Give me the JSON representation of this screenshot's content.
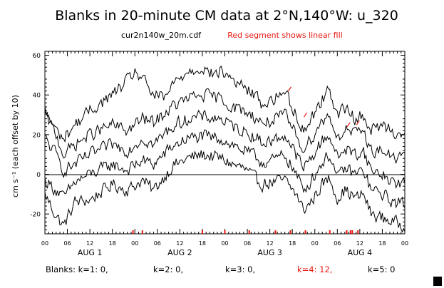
{
  "chart_data": {
    "type": "line",
    "title": "Blanks in 20-minute CM data at 2°N,140°W: u_320",
    "subtitle_file": "cur2n140w_20m.cdf",
    "subtitle_note": "Red segment shows linear fill",
    "ylabel": "cm s⁻¹ (each offset by 10)",
    "ylim": [
      -30,
      62
    ],
    "xlim": [
      0,
      96
    ],
    "y_ticks": [
      -20,
      0,
      20,
      40,
      60
    ],
    "x_hour_ticks": [
      "00",
      "06",
      "12",
      "18",
      "00",
      "06",
      "12",
      "18",
      "00",
      "06",
      "12",
      "18",
      "00",
      "06",
      "12",
      "18",
      "00"
    ],
    "day_labels": [
      "AUG 1",
      "AUG 2",
      "AUG 3",
      "AUG 4"
    ],
    "zero_line": true,
    "series": [
      {
        "offset": 0,
        "anchors": [
          [
            0,
            -10
          ],
          [
            3,
            -21
          ],
          [
            5,
            -26
          ],
          [
            8,
            -14
          ],
          [
            12,
            -13
          ],
          [
            18,
            -5
          ],
          [
            22,
            -8
          ],
          [
            26,
            -3
          ],
          [
            29,
            -8
          ],
          [
            34,
            4
          ],
          [
            38,
            8
          ],
          [
            42,
            10
          ],
          [
            47,
            8
          ],
          [
            50,
            5
          ],
          [
            53,
            3
          ],
          [
            56,
            -2
          ],
          [
            58,
            -5
          ],
          [
            61,
            -4
          ],
          [
            64,
            -3
          ],
          [
            67,
            -10
          ],
          [
            69,
            -18
          ],
          [
            71,
            -14
          ],
          [
            74,
            -5
          ],
          [
            76,
            -2
          ],
          [
            78,
            -12
          ],
          [
            80,
            -8
          ],
          [
            83,
            -12
          ],
          [
            85,
            -10
          ],
          [
            87,
            -20
          ],
          [
            90,
            -22
          ],
          [
            93,
            -24
          ],
          [
            96,
            -26
          ]
        ]
      },
      {
        "offset": 10,
        "anchors": [
          [
            0,
            -3
          ],
          [
            3,
            -8
          ],
          [
            5,
            -12
          ],
          [
            8,
            -4
          ],
          [
            12,
            0
          ],
          [
            18,
            5
          ],
          [
            22,
            2
          ],
          [
            26,
            7
          ],
          [
            29,
            5
          ],
          [
            34,
            14
          ],
          [
            38,
            18
          ],
          [
            42,
            19
          ],
          [
            47,
            18
          ],
          [
            50,
            15
          ],
          [
            53,
            12
          ],
          [
            56,
            9
          ],
          [
            58,
            6
          ],
          [
            61,
            7
          ],
          [
            64,
            10
          ],
          [
            67,
            0
          ],
          [
            69,
            -8
          ],
          [
            71,
            -3
          ],
          [
            74,
            6
          ],
          [
            76,
            10
          ],
          [
            78,
            -2
          ],
          [
            80,
            3
          ],
          [
            83,
            0
          ],
          [
            85,
            2
          ],
          [
            87,
            -8
          ],
          [
            90,
            -10
          ],
          [
            93,
            -14
          ],
          [
            96,
            -15
          ]
        ]
      },
      {
        "offset": 20,
        "anchors": [
          [
            0,
            18
          ],
          [
            3,
            10
          ],
          [
            5,
            2
          ],
          [
            8,
            5
          ],
          [
            12,
            10
          ],
          [
            18,
            15
          ],
          [
            22,
            12
          ],
          [
            26,
            18
          ],
          [
            29,
            15
          ],
          [
            34,
            24
          ],
          [
            38,
            28
          ],
          [
            42,
            29
          ],
          [
            47,
            28
          ],
          [
            50,
            24
          ],
          [
            53,
            22
          ],
          [
            56,
            19
          ],
          [
            58,
            16
          ],
          [
            61,
            17
          ],
          [
            64,
            20
          ],
          [
            67,
            10
          ],
          [
            69,
            3
          ],
          [
            71,
            8
          ],
          [
            74,
            17
          ],
          [
            76,
            20
          ],
          [
            78,
            8
          ],
          [
            80,
            13
          ],
          [
            83,
            10
          ],
          [
            85,
            12
          ],
          [
            87,
            2
          ],
          [
            90,
            0
          ],
          [
            93,
            -4
          ],
          [
            96,
            -5
          ]
        ]
      },
      {
        "offset": 30,
        "anchors": [
          [
            0,
            30
          ],
          [
            3,
            20
          ],
          [
            5,
            10
          ],
          [
            8,
            15
          ],
          [
            12,
            20
          ],
          [
            18,
            25
          ],
          [
            22,
            22
          ],
          [
            26,
            28
          ],
          [
            29,
            26
          ],
          [
            34,
            34
          ],
          [
            38,
            38
          ],
          [
            42,
            40
          ],
          [
            47,
            38
          ],
          [
            50,
            34
          ],
          [
            53,
            32
          ],
          [
            56,
            29
          ],
          [
            58,
            26
          ],
          [
            61,
            27
          ],
          [
            64,
            30
          ],
          [
            67,
            20
          ],
          [
            69,
            13
          ],
          [
            71,
            18
          ],
          [
            74,
            27
          ],
          [
            76,
            30
          ],
          [
            78,
            18
          ],
          [
            80,
            23
          ],
          [
            83,
            20
          ],
          [
            85,
            22
          ],
          [
            87,
            12
          ],
          [
            90,
            12
          ],
          [
            93,
            8
          ],
          [
            96,
            10
          ]
        ]
      },
      {
        "offset": 40,
        "anchors": [
          [
            0,
            32
          ],
          [
            3,
            22
          ],
          [
            5,
            18
          ],
          [
            8,
            25
          ],
          [
            12,
            32
          ],
          [
            18,
            40
          ],
          [
            22,
            47
          ],
          [
            24,
            52
          ],
          [
            26,
            48
          ],
          [
            29,
            40
          ],
          [
            32,
            38
          ],
          [
            34,
            45
          ],
          [
            38,
            52
          ],
          [
            42,
            54
          ],
          [
            45,
            50
          ],
          [
            47,
            52
          ],
          [
            50,
            48
          ],
          [
            53,
            44
          ],
          [
            56,
            40
          ],
          [
            58,
            35
          ],
          [
            61,
            38
          ],
          [
            64,
            42
          ],
          [
            67,
            30
          ],
          [
            69,
            22
          ],
          [
            71,
            28
          ],
          [
            74,
            38
          ],
          [
            76,
            43
          ],
          [
            78,
            30
          ],
          [
            80,
            33
          ],
          [
            83,
            28
          ],
          [
            85,
            30
          ],
          [
            87,
            22
          ],
          [
            90,
            25
          ],
          [
            93,
            22
          ],
          [
            96,
            20
          ]
        ]
      }
    ],
    "fill_segments": [
      [
        65.3,
        43
      ],
      [
        69.5,
        30
      ],
      [
        81,
        25
      ],
      [
        83.5,
        26
      ]
    ],
    "blank_markers_hours": [
      23.5,
      26,
      42,
      48,
      54.5,
      61.5,
      65.5,
      69.5,
      76,
      80.5,
      81.5,
      82,
      83.5
    ],
    "blanks_summary": [
      {
        "text": "Blanks:  k=1: 0,",
        "color": "#000000"
      },
      {
        "text": "k=2: 0,",
        "color": "#000000"
      },
      {
        "text": "k=3: 0,",
        "color": "#000000"
      },
      {
        "text": "k=4: 12,",
        "color": "#e8170f"
      },
      {
        "text": "k=5: 0",
        "color": "#000000"
      }
    ],
    "colors": {
      "axes": "#000000",
      "series": "#000000",
      "fill": "#e8170f",
      "background": "#ffffff"
    }
  }
}
